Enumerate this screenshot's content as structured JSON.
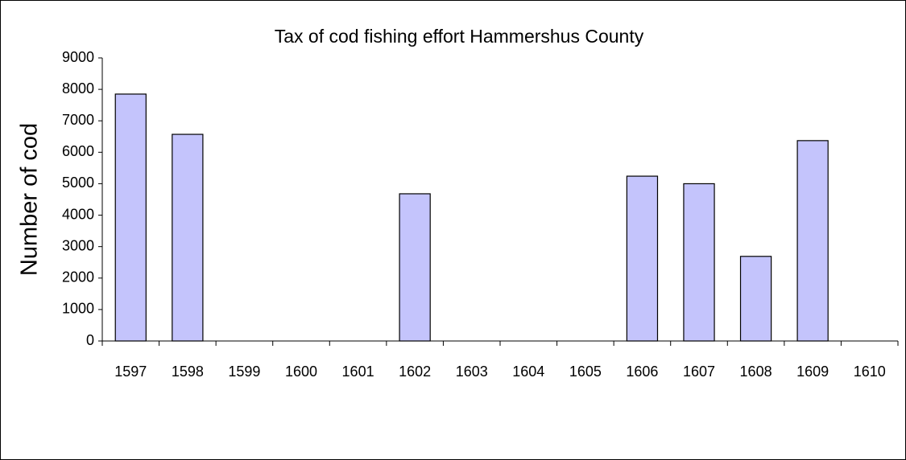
{
  "chart_data": {
    "type": "bar",
    "title": "Tax of cod fishing effort Hammershus County",
    "y_label": "Number of cod",
    "categories": [
      "1597",
      "1598",
      "1599",
      "1600",
      "1601",
      "1602",
      "1603",
      "1604",
      "1605",
      "1606",
      "1607",
      "1608",
      "1609",
      "1610"
    ],
    "values": [
      7850,
      6570,
      null,
      null,
      null,
      4680,
      null,
      null,
      null,
      5240,
      5000,
      2690,
      6370,
      null
    ],
    "color": "#c4c4fc",
    "ylim": [
      0,
      9000
    ],
    "yticks": [
      0,
      1000,
      2000,
      3000,
      4000,
      5000,
      6000,
      7000,
      8000,
      9000
    ],
    "grid": false
  }
}
